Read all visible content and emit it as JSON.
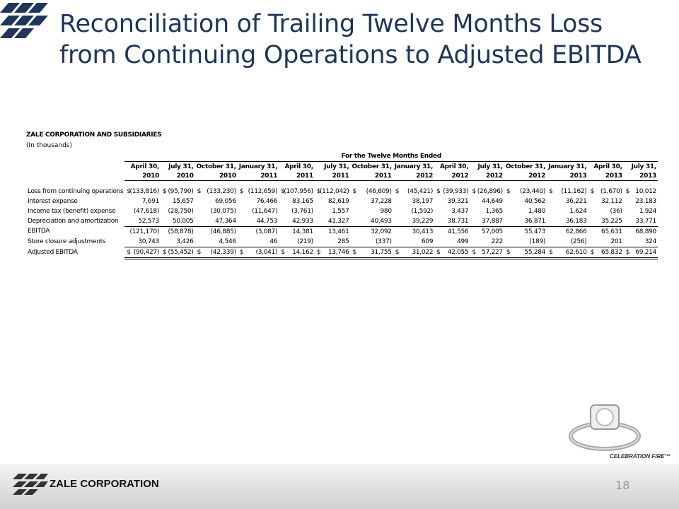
{
  "header": {
    "title": "Reconciliation of Trailing Twelve Months Loss from Continuing Operations to Adjusted EBITDA"
  },
  "table": {
    "company": "ZALE CORPORATION AND SUBSIDIARIES",
    "units": "(In thousands)",
    "group_header": "For the Twelve Months Ended",
    "currency": "$",
    "columns": [
      {
        "month": "April 30,",
        "year": "2010"
      },
      {
        "month": "July 31,",
        "year": "2010"
      },
      {
        "month": "October 31,",
        "year": "2010"
      },
      {
        "month": "January 31,",
        "year": "2011"
      },
      {
        "month": "April 30,",
        "year": "2011"
      },
      {
        "month": "July 31,",
        "year": "2011"
      },
      {
        "month": "October 31,",
        "year": "2011"
      },
      {
        "month": "January 31,",
        "year": "2012"
      },
      {
        "month": "April 30,",
        "year": "2012"
      },
      {
        "month": "July 31,",
        "year": "2012"
      },
      {
        "month": "October 31,",
        "year": "2012"
      },
      {
        "month": "January 31,",
        "year": "2013"
      },
      {
        "month": "April 30,",
        "year": "2013"
      },
      {
        "month": "July 31,",
        "year": "2013"
      }
    ],
    "rows": [
      {
        "label": "Loss from continuing operations",
        "dollar": true,
        "values": [
          "(133,816)",
          "(95,790)",
          "(133,230)",
          "(112,659)",
          "(107,956)",
          "(112,042)",
          "(46,609)",
          "(45,421)",
          "(39,933)",
          "(26,896)",
          "(23,440)",
          "(11,162)",
          "(1,670)",
          "10,012"
        ]
      },
      {
        "label": "Interest expense",
        "dollar": false,
        "values": [
          "7,691",
          "15,657",
          "69,056",
          "76,466",
          "83,165",
          "82,619",
          "37,228",
          "38,197",
          "39,321",
          "44,649",
          "40,562",
          "36,221",
          "32,112",
          "23,183"
        ]
      },
      {
        "label": "Income tax (benefit) expense",
        "dollar": false,
        "values": [
          "(47,618)",
          "(28,750)",
          "(30,075)",
          "(11,647)",
          "(3,761)",
          "1,557",
          "980",
          "(1,592)",
          "3,437",
          "1,365",
          "1,480",
          "1,624",
          "(36)",
          "1,924"
        ]
      },
      {
        "label": "Depreciation and amortization",
        "dollar": false,
        "values": [
          "52,573",
          "50,005",
          "47,364",
          "44,753",
          "42,933",
          "41,327",
          "40,493",
          "39,229",
          "38,731",
          "37,887",
          "36,871",
          "36,183",
          "35,225",
          "33,771"
        ]
      },
      {
        "label": "EBITDA",
        "dollar": false,
        "values": [
          "(121,170)",
          "(58,878)",
          "(46,885)",
          "(3,087)",
          "14,381",
          "13,461",
          "32,092",
          "30,413",
          "41,556",
          "57,005",
          "55,473",
          "62,866",
          "65,631",
          "68,890"
        ]
      },
      {
        "label": "Store closure adjustments",
        "dollar": false,
        "values": [
          "30,743",
          "3,426",
          "4,546",
          "46",
          "(219)",
          "285",
          "(337)",
          "609",
          "499",
          "222",
          "(189)",
          "(256)",
          "201",
          "324"
        ]
      },
      {
        "label": "Adjusted EBITDA",
        "dollar": true,
        "values": [
          "(90,427)",
          "(55,452)",
          "(42,339)",
          "(3,041)",
          "14,162",
          "13,746",
          "31,755",
          "31,022",
          "42,055",
          "57,227",
          "55,284",
          "62,610",
          "65,832",
          "69,214"
        ]
      }
    ]
  },
  "footer": {
    "logo": "ZALE CORPORATION",
    "brand": "CELEBRATION FIRE™",
    "page_number": "18"
  }
}
